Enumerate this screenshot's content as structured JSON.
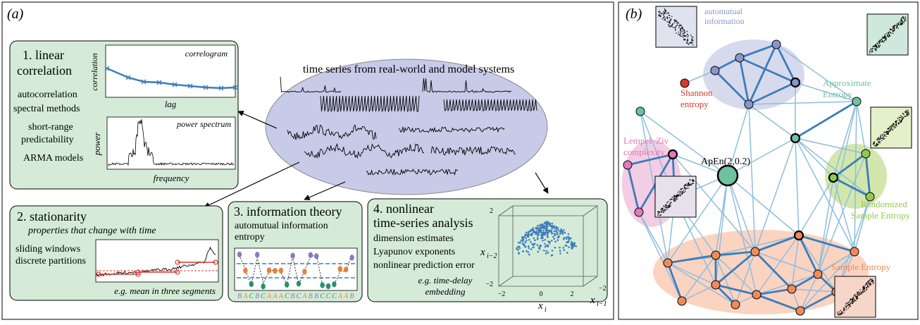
{
  "panel_a": {
    "label": "(a)",
    "center": {
      "title": "time series from real-world and model systems"
    },
    "box1": {
      "title_line1": "1. linear",
      "title_line2": "correlation",
      "items": [
        "autocorrelation",
        "spectral methods",
        "short-range",
        "predictability",
        "ARMA models"
      ],
      "correlogram": {
        "title": "correlogram",
        "xlabel": "lag",
        "ylabel": "correlation"
      },
      "spectrum": {
        "title": "power spectrum",
        "xlabel": "frequency",
        "ylabel": "power"
      }
    },
    "box2": {
      "title": "2. stationarity",
      "subtitle": "properties that change with time",
      "items": [
        "sliding windows",
        "discrete partitions"
      ],
      "caption": "e.g. mean in three segments"
    },
    "box3": {
      "title": "3. information theory",
      "items": [
        "automutual information",
        "entropy"
      ],
      "symbols": "B A C B C A A A C B C A B B C C C A A B"
    },
    "box4": {
      "title_line1": "4. nonlinear",
      "title_line2": "time-series analysis",
      "items": [
        "dimension estimates",
        "Lyapunov exponents",
        "nonlinear prediction error"
      ],
      "caption_line1": "e.g. time-delay",
      "caption_line2": "embedding",
      "axes": {
        "x": "x",
        "x_sub": "i",
        "y": "x",
        "y_sub": "i−2",
        "z": "x",
        "z_sub": "i−1"
      },
      "ticks": {
        "top": "2",
        "left": "−2",
        "x_left": "−2",
        "x_mid": "0",
        "x_right": "2",
        "z_left": "−2"
      }
    }
  },
  "panel_b": {
    "label": "(b)",
    "clusters": {
      "automutual": [
        "automutual",
        "information"
      ],
      "shannon": [
        "Shannon",
        "entropy"
      ],
      "approx": [
        "Approximate",
        "Entropy"
      ],
      "lempel": [
        "Lempel–Ziv",
        "complexity"
      ],
      "apen": "ApEn(2,0.2)",
      "randomized": [
        "Randomized",
        "Sample Entropy"
      ],
      "sample": "Sample Entropy"
    },
    "colors": {
      "automutual": "#8a95c8",
      "shannon": "#d63a2a",
      "approx": "#6ec2a1",
      "lempel": "#e07ab9",
      "randomized": "#93c94a",
      "sample": "#f08a5a"
    }
  }
}
